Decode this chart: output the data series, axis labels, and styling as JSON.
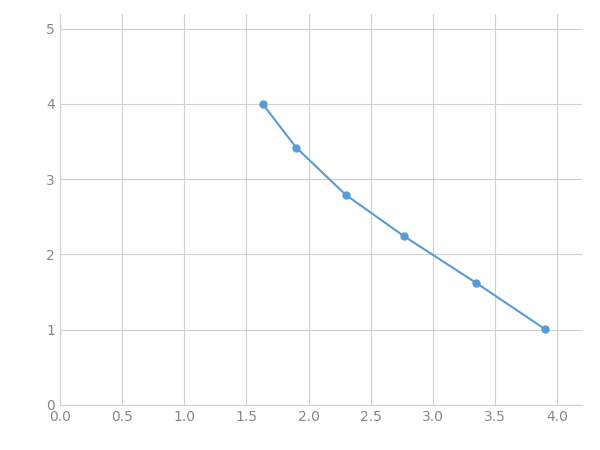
{
  "x": [
    1.63,
    1.9,
    2.3,
    2.77,
    3.35,
    3.9
  ],
  "y": [
    4.0,
    3.42,
    2.79,
    2.24,
    1.62,
    1.01
  ],
  "line_color": "#5b9bd5",
  "marker_color": "#5b9bd5",
  "marker_size": 5,
  "linewidth": 1.5,
  "xlim": [
    0.0,
    4.2
  ],
  "ylim": [
    0,
    5.2
  ],
  "xticks": [
    0.0,
    0.5,
    1.0,
    1.5,
    2.0,
    2.5,
    3.0,
    3.5,
    4.0
  ],
  "yticks": [
    0,
    1,
    2,
    3,
    4,
    5
  ],
  "grid_color": "#d0d0d0",
  "background_color": "#ffffff",
  "tick_fontsize": 10,
  "tick_color": "#888888"
}
